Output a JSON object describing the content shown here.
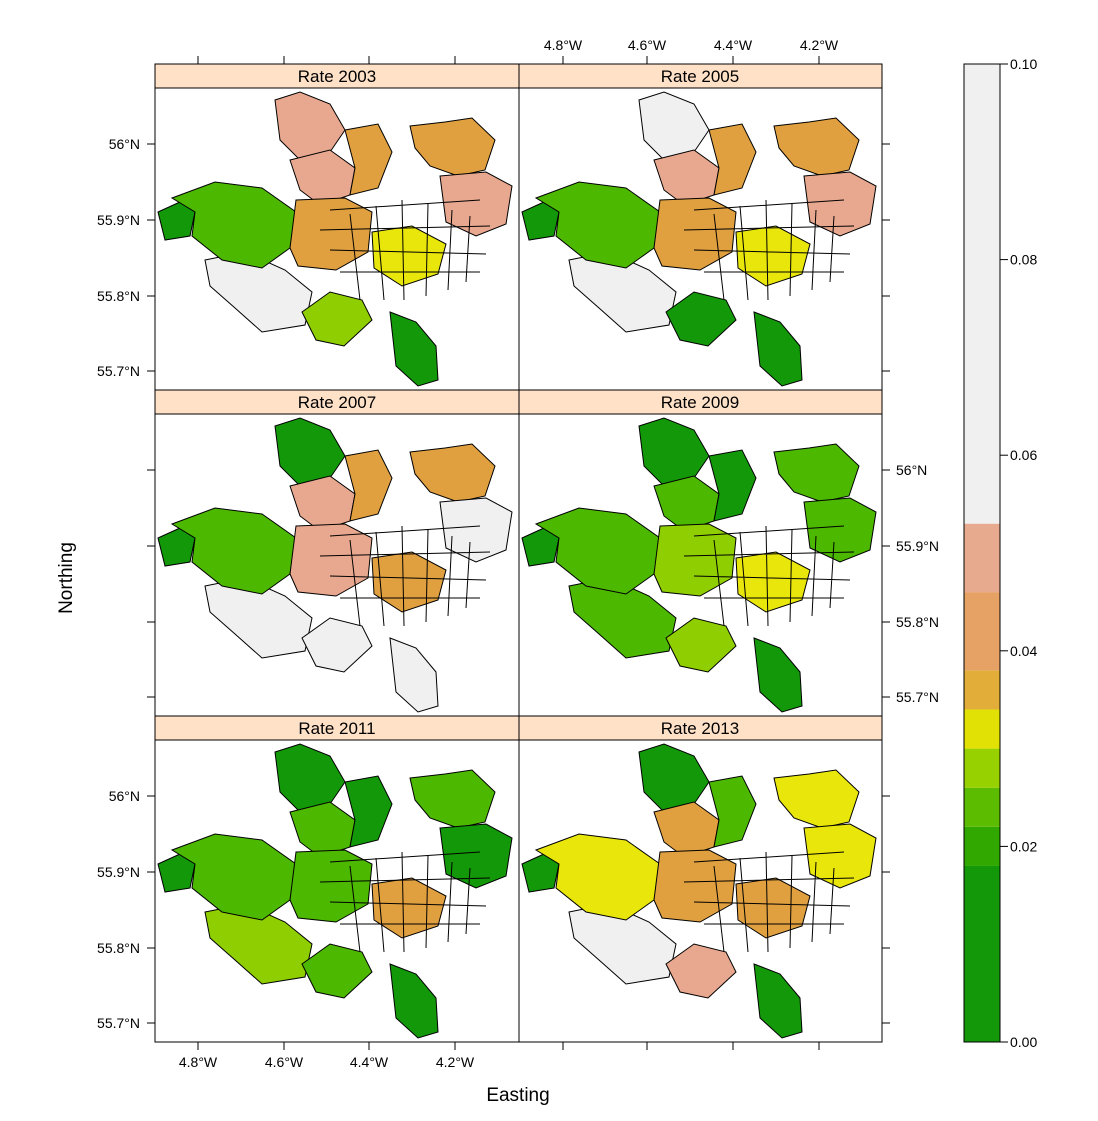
{
  "figure": {
    "xlabel": "Easting",
    "ylabel": "Northing"
  },
  "axis_labels": {
    "x_ticks": [
      "4.8°W",
      "4.6°W",
      "4.4°W",
      "4.2°W"
    ],
    "y_ticks": [
      "56°N",
      "55.9°N",
      "55.8°N",
      "55.7°N"
    ]
  },
  "panels": [
    {
      "title": "Rate 2003",
      "palette": [
        "#e8a88f",
        "#e8a88f",
        "#e0a040",
        "#e0a040",
        "#f0f0f0",
        "#13980a",
        "#4cb800",
        "#e0a040",
        "#e8e60a",
        "#8fce00",
        "#e8a88f",
        "#13980a"
      ]
    },
    {
      "title": "Rate 2005",
      "palette": [
        "#f0f0f0",
        "#e8a88f",
        "#e0a040",
        "#e0a040",
        "#f0f0f0",
        "#13980a",
        "#4cb800",
        "#e0a040",
        "#e8e60a",
        "#13980a",
        "#e8a88f",
        "#13980a"
      ]
    },
    {
      "title": "Rate 2007",
      "palette": [
        "#13980a",
        "#e8a88f",
        "#e0a040",
        "#e0a040",
        "#f0f0f0",
        "#13980a",
        "#4cb800",
        "#e8a88f",
        "#e0a040",
        "#f0f0f0",
        "#f0f0f0",
        "#f0f0f0"
      ]
    },
    {
      "title": "Rate 2009",
      "palette": [
        "#13980a",
        "#4cb800",
        "#13980a",
        "#4cb800",
        "#4cb800",
        "#13980a",
        "#4cb800",
        "#8fce00",
        "#e8e60a",
        "#8fce00",
        "#4cb800",
        "#13980a"
      ]
    },
    {
      "title": "Rate 2011",
      "palette": [
        "#13980a",
        "#4cb800",
        "#13980a",
        "#4cb800",
        "#8fce00",
        "#13980a",
        "#4cb800",
        "#4cb800",
        "#e0a040",
        "#4cb800",
        "#13980a",
        "#13980a"
      ]
    },
    {
      "title": "Rate 2013",
      "palette": [
        "#13980a",
        "#e0a040",
        "#4cb800",
        "#e8e60a",
        "#f0f0f0",
        "#13980a",
        "#e8e60a",
        "#e0a040",
        "#e0a040",
        "#e8a88f",
        "#e8e60a",
        "#13980a"
      ]
    }
  ],
  "legend": {
    "ticks": [
      "0.00",
      "0.02",
      "0.04",
      "0.06",
      "0.08",
      "0.10"
    ],
    "bands": [
      {
        "from": 0.0,
        "to": 0.018,
        "color": "#13980a"
      },
      {
        "from": 0.018,
        "to": 0.022,
        "color": "#30a800"
      },
      {
        "from": 0.022,
        "to": 0.026,
        "color": "#5cbc00"
      },
      {
        "from": 0.026,
        "to": 0.03,
        "color": "#98d100"
      },
      {
        "from": 0.03,
        "to": 0.034,
        "color": "#e1e105"
      },
      {
        "from": 0.034,
        "to": 0.038,
        "color": "#e2ad38"
      },
      {
        "from": 0.038,
        "to": 0.046,
        "color": "#e6a165"
      },
      {
        "from": 0.046,
        "to": 0.053,
        "color": "#e8aa8f"
      },
      {
        "from": 0.053,
        "to": 0.1,
        "color": "#f0f0f0"
      }
    ]
  }
}
